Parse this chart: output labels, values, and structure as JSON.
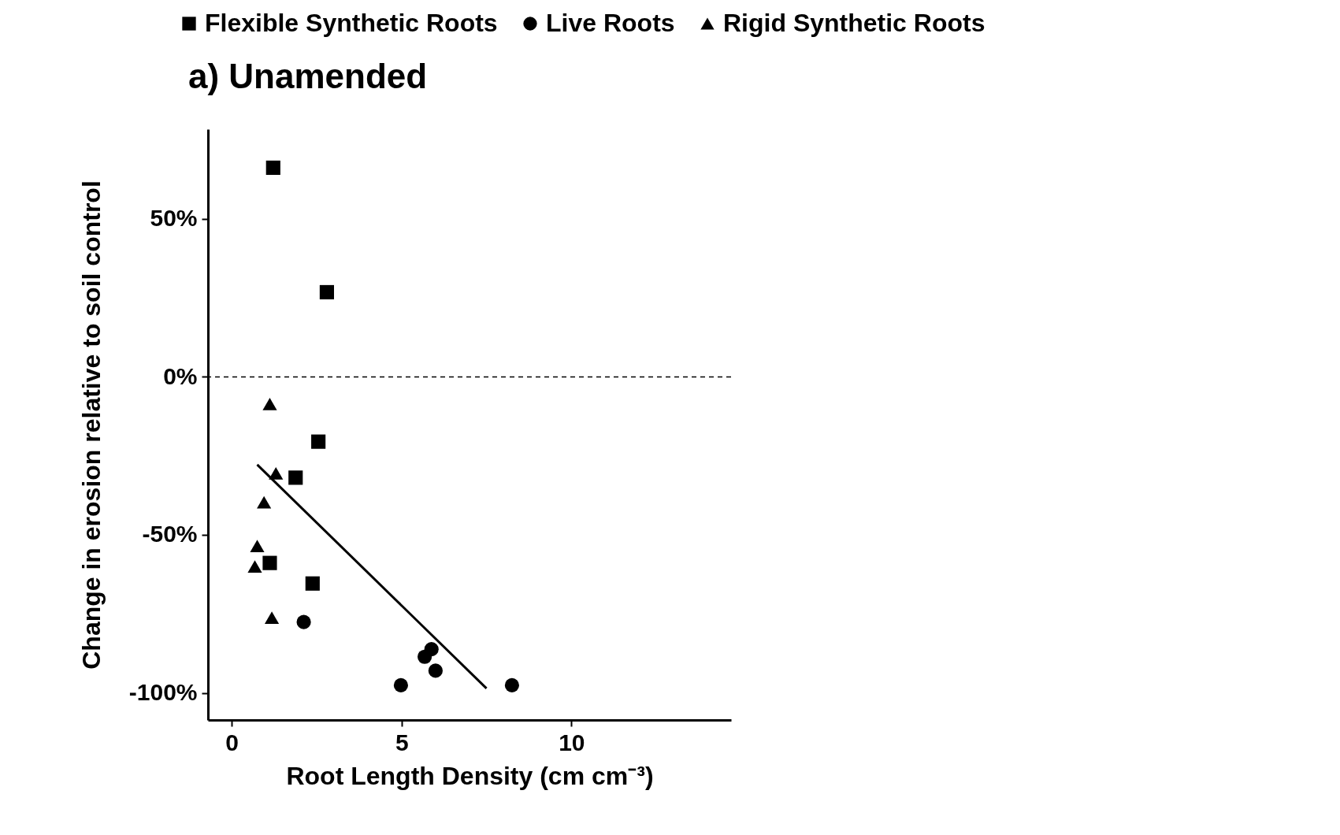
{
  "chart_data": {
    "type": "scatter",
    "title": "a) Unamended",
    "xlabel": "Root Length Density (cm cm⁻³)",
    "ylabel": "Change in erosion relative to soil control",
    "xlim": [
      -0.7,
      14.7
    ],
    "xticks": [
      0,
      5,
      10
    ],
    "ylim": [
      -108.6,
      78.4
    ],
    "yticks": [
      {
        "value": 50,
        "label": "50%"
      },
      {
        "value": 0,
        "label": "0%"
      },
      {
        "value": -50,
        "label": "-50%"
      },
      {
        "value": -100,
        "label": "-100%"
      }
    ],
    "grid": false,
    "legend": "top",
    "ref_lines": [
      {
        "axis": "y",
        "value": 0,
        "line_style": "dashed",
        "color": "#000000"
      }
    ],
    "series": [
      {
        "name": "Flexible Synthetic Roots",
        "color": "#000000",
        "marker": "square",
        "x": [
          1.22,
          2.8,
          2.55,
          1.88,
          1.12,
          2.38
        ],
        "values": [
          66.2,
          26.8,
          -20.5,
          -31.9,
          -58.9,
          -65.4
        ]
      },
      {
        "name": "Live Roots",
        "color": "#000000",
        "marker": "circle",
        "x": [
          2.12,
          4.98,
          5.68,
          5.88,
          6.0,
          8.25
        ],
        "values": [
          -77.6,
          -97.6,
          -88.6,
          -86.2,
          -93.0,
          -97.6
        ]
      },
      {
        "name": "Rigid Synthetic Roots",
        "color": "#000000",
        "marker": "triangle",
        "x": [
          1.12,
          1.3,
          0.95,
          0.75,
          0.68,
          1.18
        ],
        "values": [
          -8.6,
          -30.5,
          -39.7,
          -53.5,
          -60.0,
          -76.2
        ]
      },
      {
        "type": "line",
        "color": "#000000",
        "line_style": "solid",
        "x": [
          0.75,
          7.5
        ],
        "values": [
          -27.8,
          -98.6
        ]
      }
    ]
  }
}
